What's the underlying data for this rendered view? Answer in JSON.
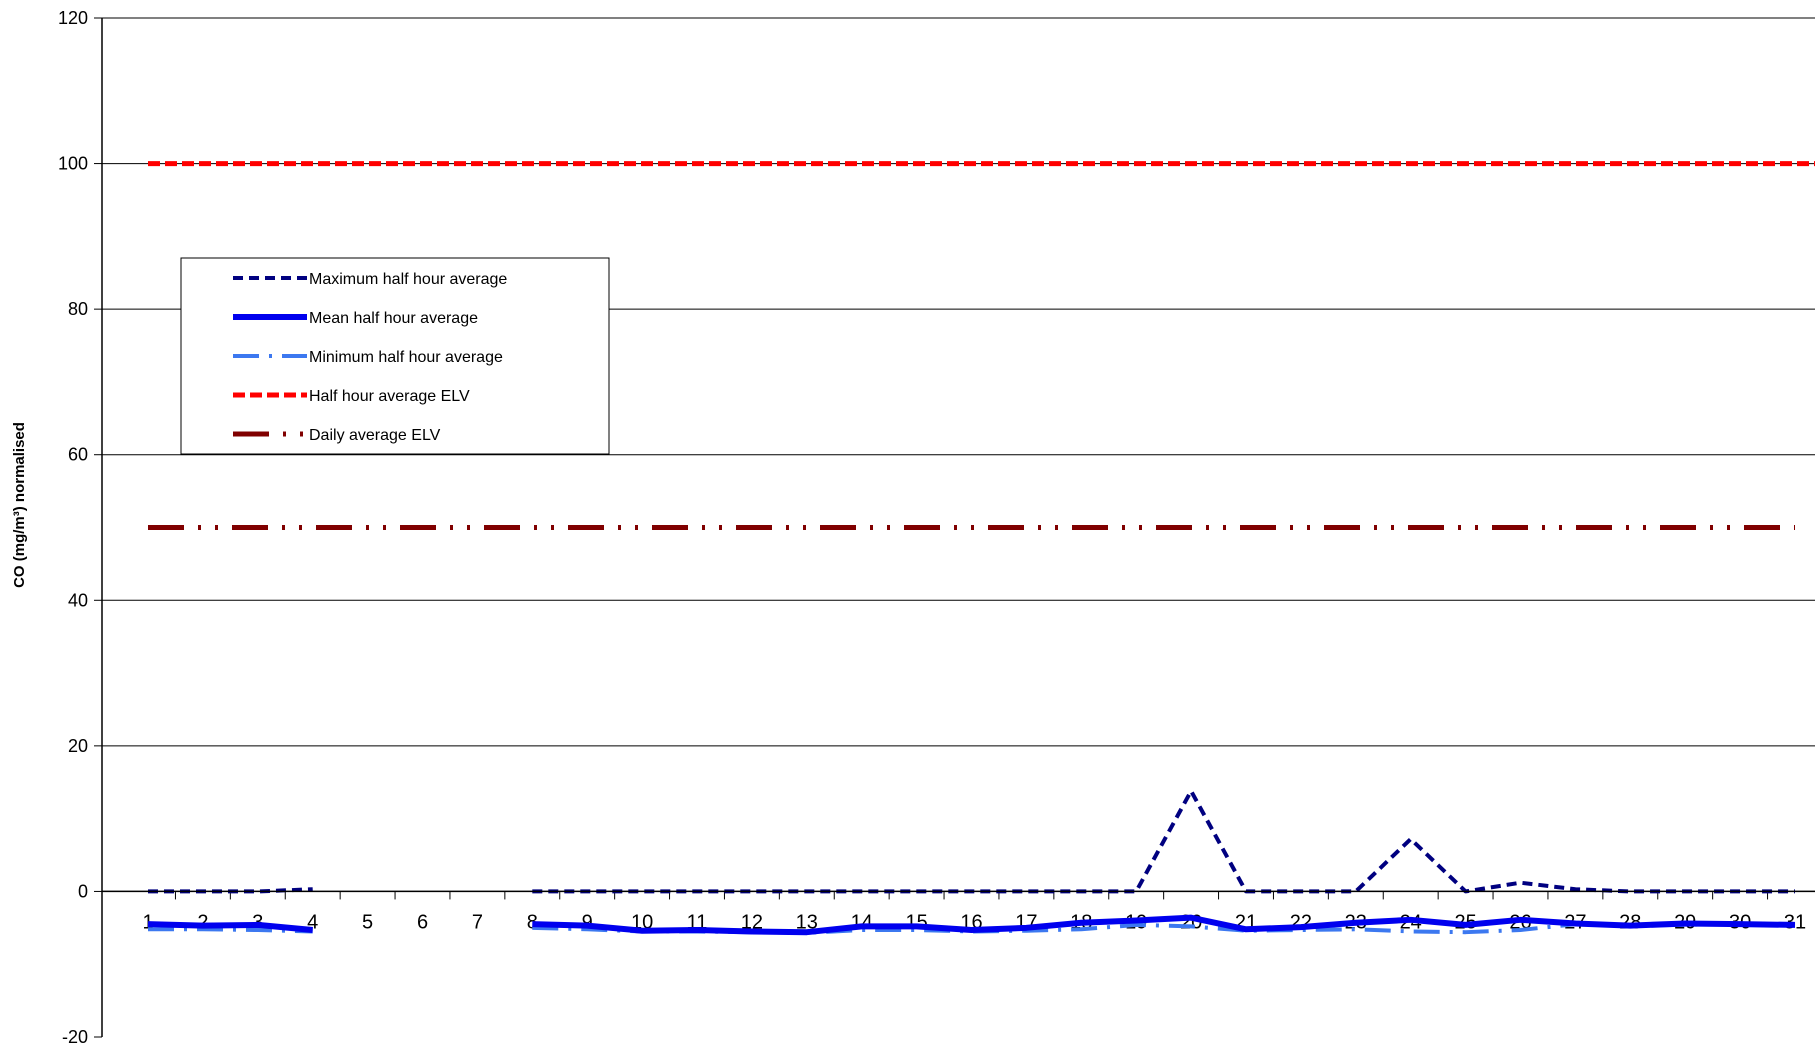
{
  "chart_data": {
    "type": "line",
    "title": "",
    "xlabel": "",
    "ylabel": "CO (mg/m³) normalised",
    "ylim": [
      -20,
      120
    ],
    "yticks": [
      -20,
      0,
      20,
      40,
      60,
      80,
      100,
      120
    ],
    "x": [
      1,
      2,
      3,
      4,
      5,
      6,
      7,
      8,
      9,
      10,
      11,
      12,
      13,
      14,
      15,
      16,
      17,
      18,
      19,
      20,
      21,
      22,
      23,
      24,
      25,
      26,
      27,
      28,
      29,
      30,
      31
    ],
    "grid": "horizontal",
    "legend_position": "top-left",
    "series": [
      {
        "name": "Maximum half hour average",
        "color": "#000080",
        "style": "dashed",
        "values": [
          0,
          0,
          0,
          0.3,
          null,
          null,
          null,
          0,
          0,
          0,
          0,
          0,
          0,
          0,
          0,
          0,
          0,
          0,
          0,
          13.8,
          0,
          0,
          0,
          7.2,
          0,
          1.2,
          0.3,
          0,
          0,
          0,
          0
        ]
      },
      {
        "name": "Mean half hour average",
        "color": "#0000ee",
        "style": "solid",
        "values": [
          -4.5,
          -4.7,
          -4.6,
          -5.3,
          null,
          null,
          null,
          -4.5,
          -4.7,
          -5.4,
          -5.3,
          -5.5,
          -5.6,
          -4.8,
          -4.8,
          -5.3,
          -5.0,
          -4.3,
          -4.0,
          -3.6,
          -5.2,
          -4.9,
          -4.3,
          -3.9,
          -4.6,
          -3.9,
          -4.4,
          -4.7,
          -4.4,
          -4.5,
          -4.6
        ]
      },
      {
        "name": "Minimum half hour average",
        "color": "#3c78f0",
        "style": "dashdot",
        "values": [
          -5.2,
          -5.2,
          -5.3,
          -5.5,
          null,
          null,
          null,
          -5.0,
          -5.2,
          -5.5,
          -5.5,
          -5.6,
          -5.7,
          -5.3,
          -5.3,
          -5.5,
          -5.4,
          -5.2,
          -4.6,
          -4.8,
          -5.4,
          -5.3,
          -5.2,
          -5.5,
          -5.6,
          -5.3,
          -4.5,
          -4.7,
          -4.6,
          -4.4,
          -4.7
        ]
      },
      {
        "name": "Half hour average ELV",
        "color": "#ff0000",
        "style": "dashed",
        "values": [
          100,
          100,
          100,
          100,
          100,
          100,
          100,
          100,
          100,
          100,
          100,
          100,
          100,
          100,
          100,
          100,
          100,
          100,
          100,
          100,
          100,
          100,
          100,
          100,
          100,
          100,
          100,
          100,
          100,
          100,
          100
        ]
      },
      {
        "name": "Daily average ELV",
        "color": "#800000",
        "style": "dashdotdot",
        "values": [
          50,
          50,
          50,
          50,
          50,
          50,
          50,
          50,
          50,
          50,
          50,
          50,
          50,
          50,
          50,
          50,
          50,
          50,
          50,
          50,
          50,
          50,
          50,
          50,
          50,
          50,
          50,
          50,
          50,
          50,
          50
        ]
      }
    ]
  }
}
